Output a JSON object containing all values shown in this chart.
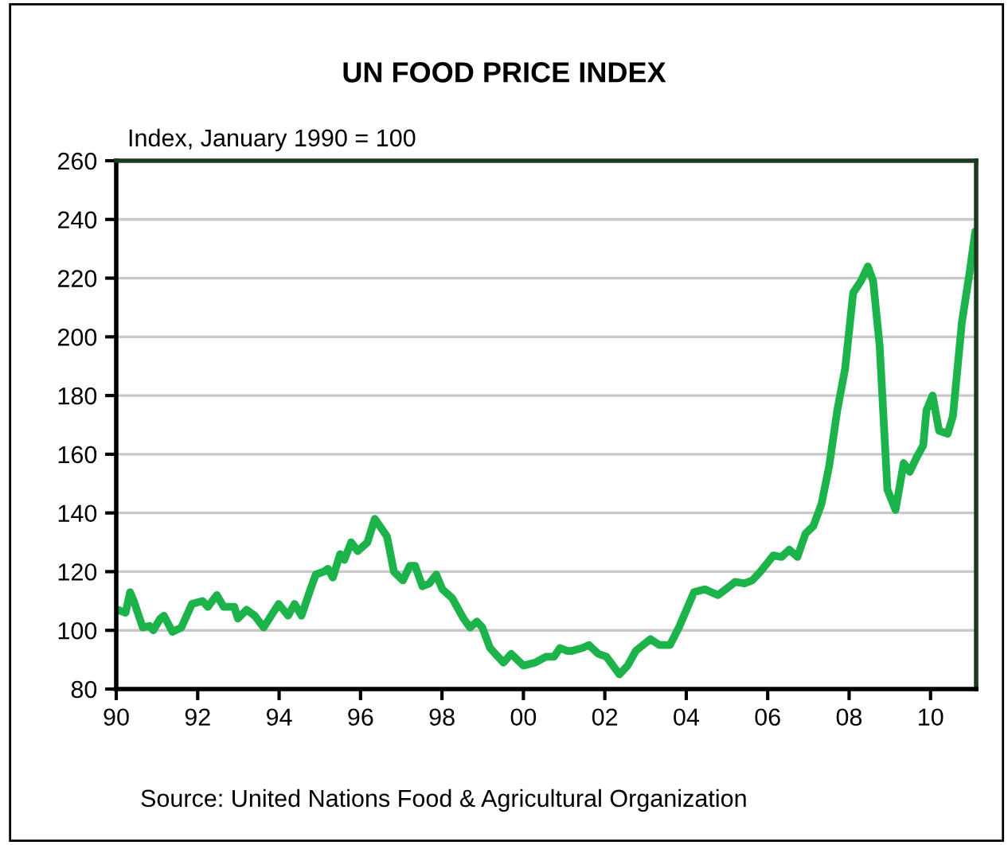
{
  "chart_data": {
    "type": "line",
    "title": "UN FOOD PRICE INDEX",
    "ylabel": "Index, January 1990 = 100",
    "annotations": [
      "Source: United Nations Food & Agricultural Organization"
    ],
    "x": [
      1990.04,
      1990.23,
      1990.34,
      1990.43,
      1990.65,
      1990.82,
      1990.91,
      1991.08,
      1991.17,
      1991.38,
      1991.6,
      1991.86,
      1992.12,
      1992.25,
      1992.47,
      1992.64,
      1992.9,
      1992.99,
      1993.2,
      1993.4,
      1993.62,
      1993.99,
      1994.22,
      1994.38,
      1994.55,
      1994.77,
      1994.9,
      1995.1,
      1995.2,
      1995.32,
      1995.5,
      1995.6,
      1995.77,
      1995.93,
      1996.17,
      1996.35,
      1996.65,
      1996.82,
      1997.04,
      1997.21,
      1997.34,
      1997.52,
      1997.69,
      1997.86,
      1998.01,
      1998.25,
      1998.53,
      1998.69,
      1998.86,
      1998.99,
      1999.18,
      1999.31,
      1999.51,
      1999.7,
      2000.0,
      2000.29,
      2000.55,
      2000.75,
      2000.9,
      2001.07,
      2001.19,
      2001.45,
      2001.61,
      2001.84,
      2002.04,
      2002.36,
      2002.56,
      2002.76,
      2003.12,
      2003.34,
      2003.6,
      2003.82,
      2004.19,
      2004.45,
      2004.78,
      2004.97,
      2005.2,
      2005.43,
      2005.62,
      2005.82,
      2006.14,
      2006.34,
      2006.53,
      2006.73,
      2006.93,
      2007.12,
      2007.32,
      2007.51,
      2007.71,
      2007.9,
      2008.1,
      2008.29,
      2008.46,
      2008.59,
      2008.75,
      2008.94,
      2009.14,
      2009.34,
      2009.49,
      2009.66,
      2009.82,
      2009.9,
      2010.05,
      2010.21,
      2010.42,
      2010.55,
      2010.77,
      2010.96,
      2011.1
    ],
    "series": [
      {
        "color": "#1db34b",
        "values": [
          107,
          106,
          113,
          110,
          101,
          101.5,
          100,
          104,
          105,
          99.5,
          101,
          109,
          110,
          108,
          112,
          108,
          108,
          104,
          107,
          105,
          101,
          109,
          105,
          109,
          105,
          114,
          119,
          120,
          121,
          118,
          126,
          124,
          130,
          127,
          130,
          138,
          132,
          120,
          117,
          122,
          122,
          115,
          116,
          119,
          114,
          111,
          104,
          101,
          103,
          101,
          94,
          92,
          89,
          92,
          88,
          89,
          91,
          91,
          94,
          93,
          93,
          94,
          95,
          92,
          91,
          85,
          88,
          93,
          97,
          95,
          95,
          101,
          113,
          114,
          112,
          114,
          116.5,
          116,
          117,
          120,
          125.5,
          125,
          127.5,
          125,
          133,
          135.5,
          143,
          156,
          175,
          189,
          215,
          219,
          224,
          219,
          197,
          148,
          141,
          157,
          154,
          159,
          163,
          175,
          180,
          168,
          167,
          173,
          205,
          222,
          236
        ]
      }
    ],
    "xlim": [
      1990,
      2011.12
    ],
    "xticks": [
      {
        "value": 1990,
        "label": "90"
      },
      {
        "value": 1992,
        "label": "92"
      },
      {
        "value": 1994,
        "label": "94"
      },
      {
        "value": 1996,
        "label": "96"
      },
      {
        "value": 1998,
        "label": "98"
      },
      {
        "value": 2000,
        "label": "00"
      },
      {
        "value": 2002,
        "label": "02"
      },
      {
        "value": 2004,
        "label": "04"
      },
      {
        "value": 2006,
        "label": "06"
      },
      {
        "value": 2008,
        "label": "08"
      },
      {
        "value": 2010,
        "label": "10"
      }
    ],
    "ylim": [
      80,
      260
    ],
    "yticks": [
      80,
      100,
      120,
      140,
      160,
      180,
      200,
      220,
      240,
      260
    ],
    "grid": "y",
    "marker": "none",
    "line_style": "solid"
  }
}
